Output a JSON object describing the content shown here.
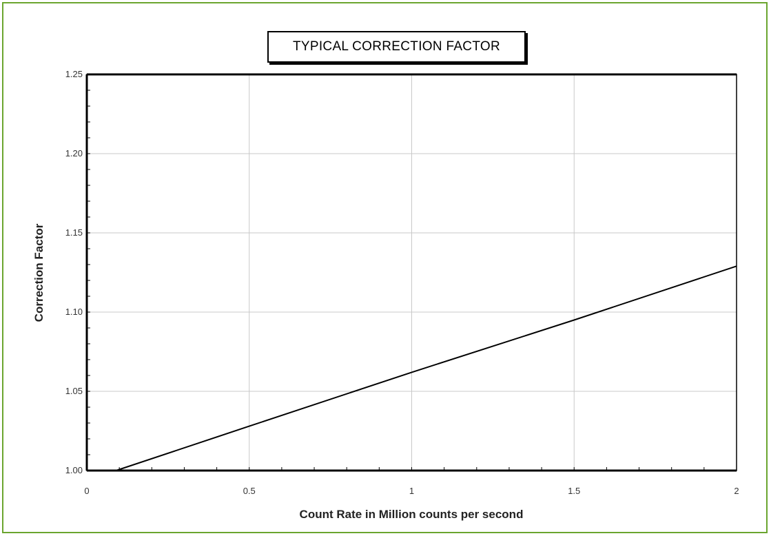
{
  "chart_data": {
    "type": "line",
    "title": "TYPICAL CORRECTION FACTOR",
    "xlabel": "Count Rate in Million counts per second",
    "ylabel": "Correction Factor",
    "xlim": [
      0,
      2
    ],
    "ylim": [
      1.0,
      1.25
    ],
    "x_ticks": [
      0,
      0.5,
      1,
      1.5,
      2
    ],
    "x_tick_labels": [
      "0",
      "0.5",
      "1",
      "1.5",
      "2"
    ],
    "y_ticks": [
      1.0,
      1.05,
      1.1,
      1.15,
      1.2,
      1.25
    ],
    "y_tick_labels": [
      "1.00",
      "1.05",
      "1.10",
      "1.15",
      "1.20",
      "1.25"
    ],
    "grid": true,
    "legend": "none",
    "series": [
      {
        "color": "#000000",
        "x": [
          0.09,
          0.5,
          1.0,
          1.5,
          2.0
        ],
        "y": [
          1.0,
          1.028,
          1.062,
          1.095,
          1.129
        ]
      }
    ]
  }
}
